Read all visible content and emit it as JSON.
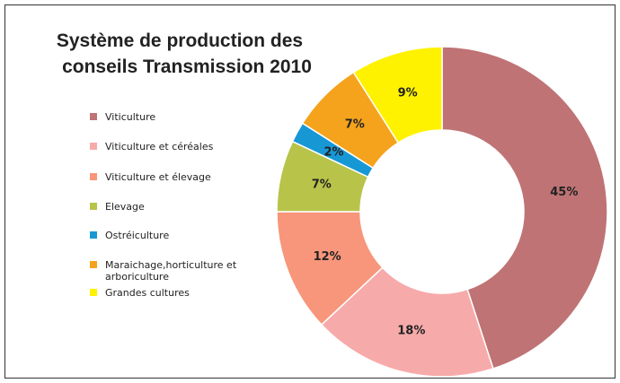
{
  "chart_data": {
    "type": "donut",
    "title": [
      "Système de production des",
      "conseils Transmission 2010"
    ],
    "categories": [
      "Viticulture",
      "Viticulture et céréales",
      "Viticulture et élevage",
      "Elevage",
      "Ostréiculture",
      "Maraichage,horticulture et arboriculture",
      "Grandes cultures"
    ],
    "values": [
      45,
      18,
      12,
      7,
      2,
      7,
      9
    ],
    "value_labels": [
      "45%",
      "18%",
      "12%",
      "7%",
      "2%",
      "7%",
      "9%"
    ],
    "colors": [
      "#bf7375",
      "#f7aaaa",
      "#f7967a",
      "#b8c34a",
      "#1798d5",
      "#f5a31c",
      "#fff200"
    ],
    "legend": "left"
  }
}
